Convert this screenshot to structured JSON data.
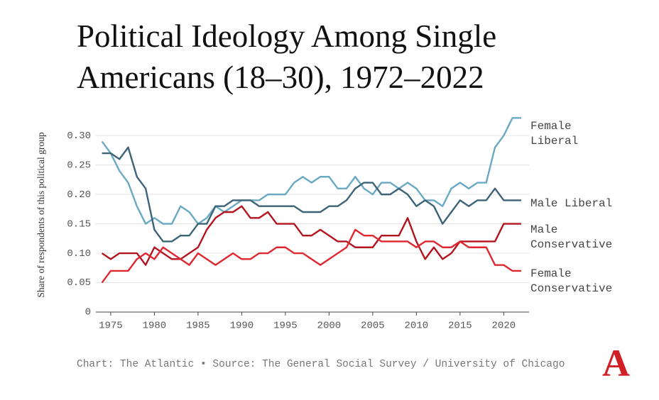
{
  "chart_data": {
    "type": "line",
    "title": "Political Ideology Among Single Americans (18–30), 1972–2022",
    "y_label": "Share of respondents of this political group",
    "source": "Chart: The Atlantic • Source: The General Social Survey / University of Chicago",
    "logo": "A",
    "x": [
      1974,
      1975,
      1976,
      1977,
      1978,
      1979,
      1980,
      1981,
      1982,
      1983,
      1984,
      1985,
      1986,
      1987,
      1988,
      1989,
      1990,
      1991,
      1992,
      1993,
      1994,
      1995,
      1996,
      1997,
      1998,
      1999,
      2000,
      2001,
      2002,
      2003,
      2004,
      2005,
      2006,
      2007,
      2008,
      2009,
      2010,
      2011,
      2012,
      2013,
      2014,
      2015,
      2016,
      2017,
      2018,
      2019,
      2020,
      2021,
      2022
    ],
    "series": [
      {
        "name": "Female Liberal",
        "color": "#6aa9c4",
        "values": [
          0.29,
          0.27,
          0.24,
          0.22,
          0.18,
          0.15,
          0.16,
          0.15,
          0.15,
          0.18,
          0.17,
          0.15,
          0.16,
          0.18,
          0.17,
          0.18,
          0.19,
          0.19,
          0.19,
          0.2,
          0.2,
          0.2,
          0.22,
          0.23,
          0.22,
          0.23,
          0.23,
          0.21,
          0.21,
          0.23,
          0.21,
          0.2,
          0.22,
          0.22,
          0.21,
          0.22,
          0.21,
          0.19,
          0.19,
          0.18,
          0.21,
          0.22,
          0.21,
          0.22,
          0.22,
          0.28,
          0.3,
          0.33,
          0.33
        ]
      },
      {
        "name": "Male Liberal",
        "color": "#3c6478",
        "values": [
          0.27,
          0.27,
          0.26,
          0.28,
          0.23,
          0.21,
          0.14,
          0.12,
          0.12,
          0.13,
          0.13,
          0.15,
          0.15,
          0.18,
          0.18,
          0.19,
          0.19,
          0.19,
          0.18,
          0.18,
          0.18,
          0.18,
          0.18,
          0.17,
          0.17,
          0.17,
          0.18,
          0.18,
          0.19,
          0.21,
          0.22,
          0.22,
          0.2,
          0.2,
          0.21,
          0.2,
          0.18,
          0.19,
          0.18,
          0.15,
          0.17,
          0.19,
          0.18,
          0.19,
          0.19,
          0.21,
          0.19,
          0.19,
          0.19
        ]
      },
      {
        "name": "Male Conservative",
        "color": "#b3141e",
        "values": [
          0.1,
          0.09,
          0.1,
          0.1,
          0.1,
          0.08,
          0.11,
          0.1,
          0.09,
          0.09,
          0.1,
          0.11,
          0.14,
          0.16,
          0.17,
          0.17,
          0.18,
          0.16,
          0.16,
          0.17,
          0.15,
          0.15,
          0.15,
          0.13,
          0.13,
          0.14,
          0.13,
          0.12,
          0.12,
          0.11,
          0.11,
          0.11,
          0.13,
          0.13,
          0.13,
          0.16,
          0.12,
          0.09,
          0.11,
          0.09,
          0.1,
          0.12,
          0.12,
          0.12,
          0.12,
          0.12,
          0.15,
          0.15,
          0.15
        ]
      },
      {
        "name": "Female Conservative",
        "color": "#e0262e",
        "values": [
          0.05,
          0.07,
          0.07,
          0.07,
          0.09,
          0.1,
          0.09,
          0.11,
          0.1,
          0.09,
          0.08,
          0.1,
          0.09,
          0.08,
          0.09,
          0.1,
          0.09,
          0.09,
          0.1,
          0.1,
          0.11,
          0.11,
          0.1,
          0.1,
          0.09,
          0.08,
          0.09,
          0.1,
          0.11,
          0.14,
          0.13,
          0.13,
          0.12,
          0.12,
          0.12,
          0.12,
          0.11,
          0.12,
          0.12,
          0.11,
          0.11,
          0.12,
          0.11,
          0.11,
          0.11,
          0.08,
          0.08,
          0.07,
          0.07
        ]
      }
    ],
    "xlim": [
      1973.3,
      2022.9
    ],
    "xticks": [
      1975,
      1980,
      1985,
      1990,
      1995,
      2000,
      2005,
      2010,
      2015,
      2020
    ],
    "ylim": [
      0,
      0.34
    ],
    "yticks": [
      {
        "value": 0,
        "label": "0"
      },
      0.05,
      {
        "value": 0.1,
        "label": "0.10"
      },
      0.15,
      {
        "value": 0.2,
        "label": "0.20"
      },
      0.25,
      {
        "value": 0.3,
        "label": "0.30"
      }
    ],
    "grid": true,
    "legend": "line-end"
  }
}
